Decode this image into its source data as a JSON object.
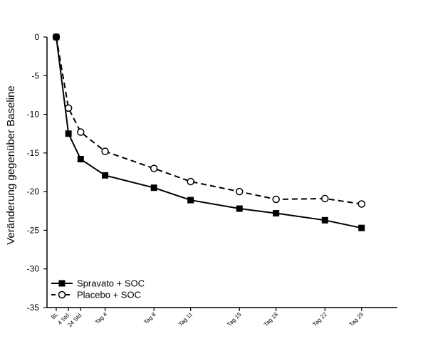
{
  "chart_data": {
    "type": "line",
    "ylabel": "Veränderung gegenüber Baseline",
    "xlabel": "",
    "ylim": [
      -35,
      0
    ],
    "yticks": [
      0,
      -5,
      -10,
      -15,
      -20,
      -25,
      -30,
      -35
    ],
    "x": [
      0,
      1,
      2,
      4,
      8,
      11,
      15,
      18,
      22,
      25
    ],
    "xtick_labels": [
      "BL",
      "4 Std.",
      "24 Std.",
      "Tag 4",
      "Tag 8",
      "Tag 11",
      "Tag 15",
      "Tag 18",
      "Tag 22",
      "Tag 25"
    ],
    "series": [
      {
        "name": "Spravato + SOC",
        "marker": "filled-square",
        "line": "solid",
        "values": [
          0,
          -12.5,
          -15.8,
          -17.9,
          -19.5,
          -21.1,
          -22.2,
          -22.8,
          -23.7,
          -24.7
        ]
      },
      {
        "name": "Placebo + SOC",
        "marker": "open-circle",
        "line": "dashed",
        "values": [
          0,
          -9.2,
          -12.3,
          -14.8,
          -17.0,
          -18.7,
          -20.0,
          -21.0,
          -20.9,
          -21.6
        ]
      }
    ],
    "grid": false,
    "legend_position": "bottom-left"
  }
}
